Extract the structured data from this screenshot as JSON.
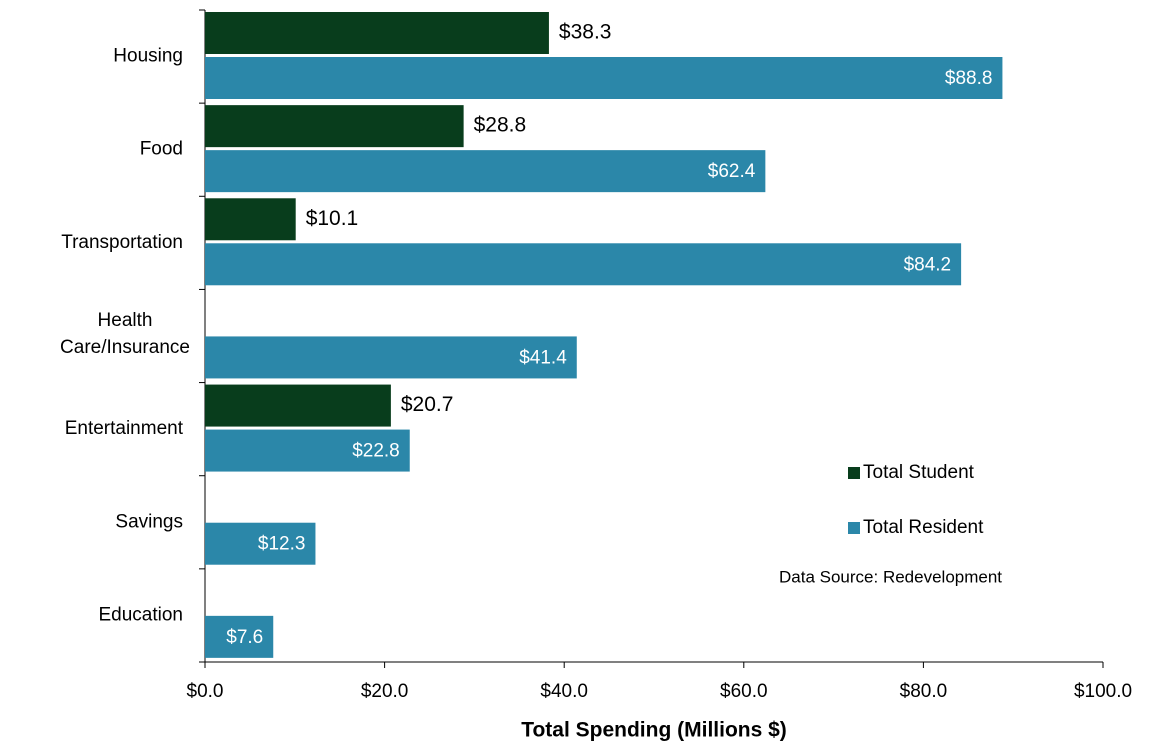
{
  "chart_data": {
    "type": "bar",
    "orientation": "horizontal",
    "xlabel": "Total Spending (Millions $)",
    "annotation": "Data Source: Redevelopment",
    "categories": [
      "Housing",
      "Food",
      "Transportation",
      "Health Care/Insurance",
      "Entertainment",
      "Savings",
      "Education"
    ],
    "series": [
      {
        "name": "Total Student",
        "color": "#083d1c",
        "values": [
          38.3,
          28.8,
          10.1,
          null,
          20.7,
          null,
          null
        ],
        "value_labels": [
          "$38.3",
          "$28.8",
          "$10.1",
          null,
          "$20.7",
          null,
          null
        ]
      },
      {
        "name": "Total Resident",
        "color": "#2b87a9",
        "values": [
          88.8,
          62.4,
          84.2,
          41.4,
          22.8,
          12.3,
          7.6
        ],
        "value_labels": [
          "$88.8",
          "$62.4",
          "$84.2",
          "$41.4",
          "$22.8",
          "$12.3",
          "$7.6"
        ]
      }
    ],
    "xlim": [
      0,
      100
    ],
    "xticks": [
      {
        "value": 0,
        "label": "$0.0"
      },
      {
        "value": 20,
        "label": "$20.0"
      },
      {
        "value": 40,
        "label": "$40.0"
      },
      {
        "value": 60,
        "label": "$60.0"
      },
      {
        "value": 80,
        "label": "$80.0"
      },
      {
        "value": 100,
        "label": "$100.0"
      }
    ],
    "legend": "right"
  }
}
